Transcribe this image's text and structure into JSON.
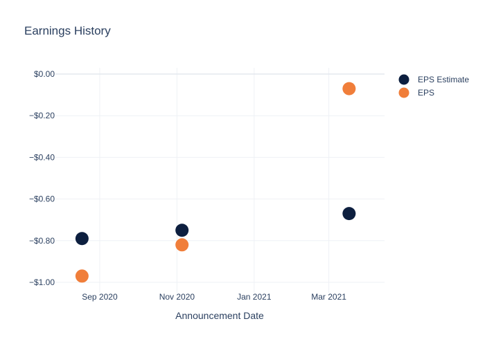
{
  "chart_data": {
    "type": "scatter",
    "title": "Earnings History",
    "xlabel": "Announcement Date",
    "ylabel": "",
    "x_ticks": [
      {
        "date": "2020-09-01",
        "label": "Sep 2020"
      },
      {
        "date": "2020-11-01",
        "label": "Nov 2020"
      },
      {
        "date": "2021-01-01",
        "label": "Jan 2021"
      },
      {
        "date": "2021-03-01",
        "label": "Mar 2021"
      }
    ],
    "y_ticks": [
      {
        "value": 0.0,
        "label": "$0.00"
      },
      {
        "value": -0.2,
        "label": "−$0.20"
      },
      {
        "value": -0.4,
        "label": "−$0.40"
      },
      {
        "value": -0.6,
        "label": "−$0.60"
      },
      {
        "value": -0.8,
        "label": "−$0.80"
      },
      {
        "value": -1.0,
        "label": "−$1.00"
      }
    ],
    "xlim": [
      "2020-07-28",
      "2021-04-14"
    ],
    "ylim": [
      -1.05,
      0.03
    ],
    "grid": true,
    "legend_position": "top-right",
    "series": [
      {
        "name": "EPS Estimate",
        "color": "#0d1f3f",
        "points": [
          {
            "x": "2020-08-18",
            "y": -0.79
          },
          {
            "x": "2020-11-05",
            "y": -0.75
          },
          {
            "x": "2021-03-17",
            "y": -0.67
          }
        ]
      },
      {
        "name": "EPS",
        "color": "#f07e3a",
        "points": [
          {
            "x": "2020-08-18",
            "y": -0.97
          },
          {
            "x": "2020-11-05",
            "y": -0.82
          },
          {
            "x": "2021-03-17",
            "y": -0.07
          }
        ]
      }
    ]
  }
}
